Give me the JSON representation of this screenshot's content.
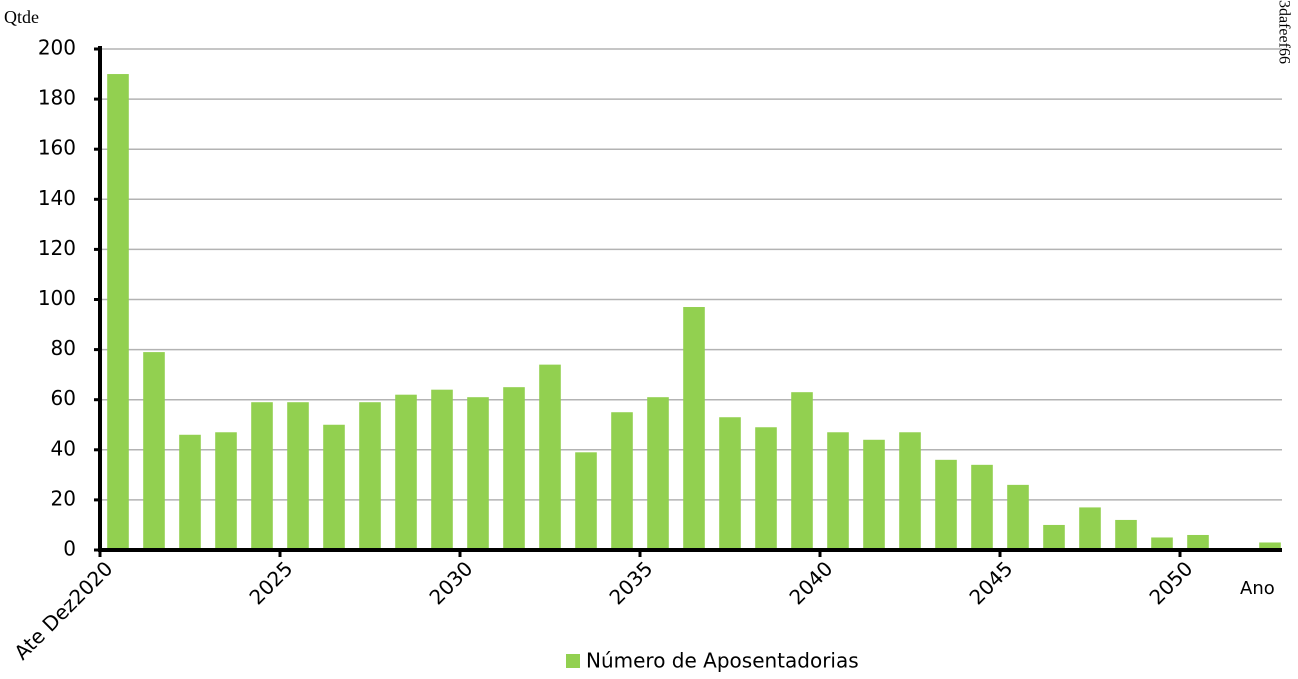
{
  "chart_data": {
    "type": "bar",
    "y_label": "Qtde",
    "x_label": "Ano",
    "watermark": "3dafeef66",
    "categories": [
      "Ate Dez2020",
      null,
      null,
      null,
      null,
      "2025",
      null,
      null,
      null,
      null,
      "2030",
      null,
      null,
      null,
      null,
      "2035",
      null,
      null,
      null,
      null,
      "2040",
      null,
      null,
      null,
      null,
      "2045",
      null,
      null,
      null,
      null,
      "2050",
      null,
      null
    ],
    "series": [
      {
        "name": "Número de Aposentadorias",
        "color": "#92d050",
        "values": [
          190,
          79,
          46,
          47,
          59,
          59,
          50,
          59,
          62,
          64,
          61,
          65,
          74,
          39,
          55,
          61,
          97,
          53,
          49,
          63,
          47,
          44,
          47,
          36,
          34,
          26,
          10,
          17,
          12,
          5,
          6,
          null,
          3
        ]
      }
    ],
    "ylim": [
      0,
      200
    ],
    "yticks": [
      0,
      20,
      40,
      60,
      80,
      100,
      120,
      140,
      160,
      180,
      200
    ],
    "grid": true
  }
}
